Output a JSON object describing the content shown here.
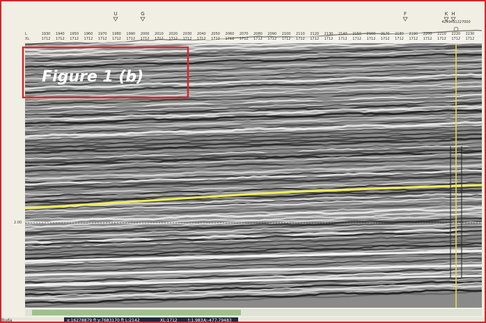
{
  "figure_label": "Figure 1 (b)",
  "well_markers": [
    "U",
    "G",
    "F",
    "K",
    "H"
  ],
  "well_name": "4249491227000",
  "header": {
    "row_labels": [
      "L",
      "XL"
    ],
    "inline": [
      1930,
      1940,
      1950,
      1960,
      1970,
      1980,
      1990,
      2000,
      2010,
      2020,
      2030,
      2040,
      2050,
      2060,
      2070,
      2080,
      2090,
      2100,
      2110,
      2120,
      2130,
      2140,
      2150,
      2160,
      2170,
      2180,
      2190,
      2200,
      2210,
      2220,
      2230
    ],
    "crossline": [
      1712,
      1712,
      1712,
      1712,
      1712,
      1712,
      1712,
      1712,
      1712,
      1712,
      1712,
      1712,
      1712,
      1712,
      1712,
      1712,
      1712,
      1712,
      1712,
      1712,
      1712,
      1712,
      1712,
      1712,
      1712,
      1712,
      1712,
      1712,
      1712,
      1712,
      1712
    ]
  },
  "time_label": "2.00",
  "status": [
    "Buda",
    "x:16278879 ft",
    "y:7683170 ft",
    "L:2142",
    "XL:1712",
    "t:1.983",
    "A:-477.79483"
  ]
}
